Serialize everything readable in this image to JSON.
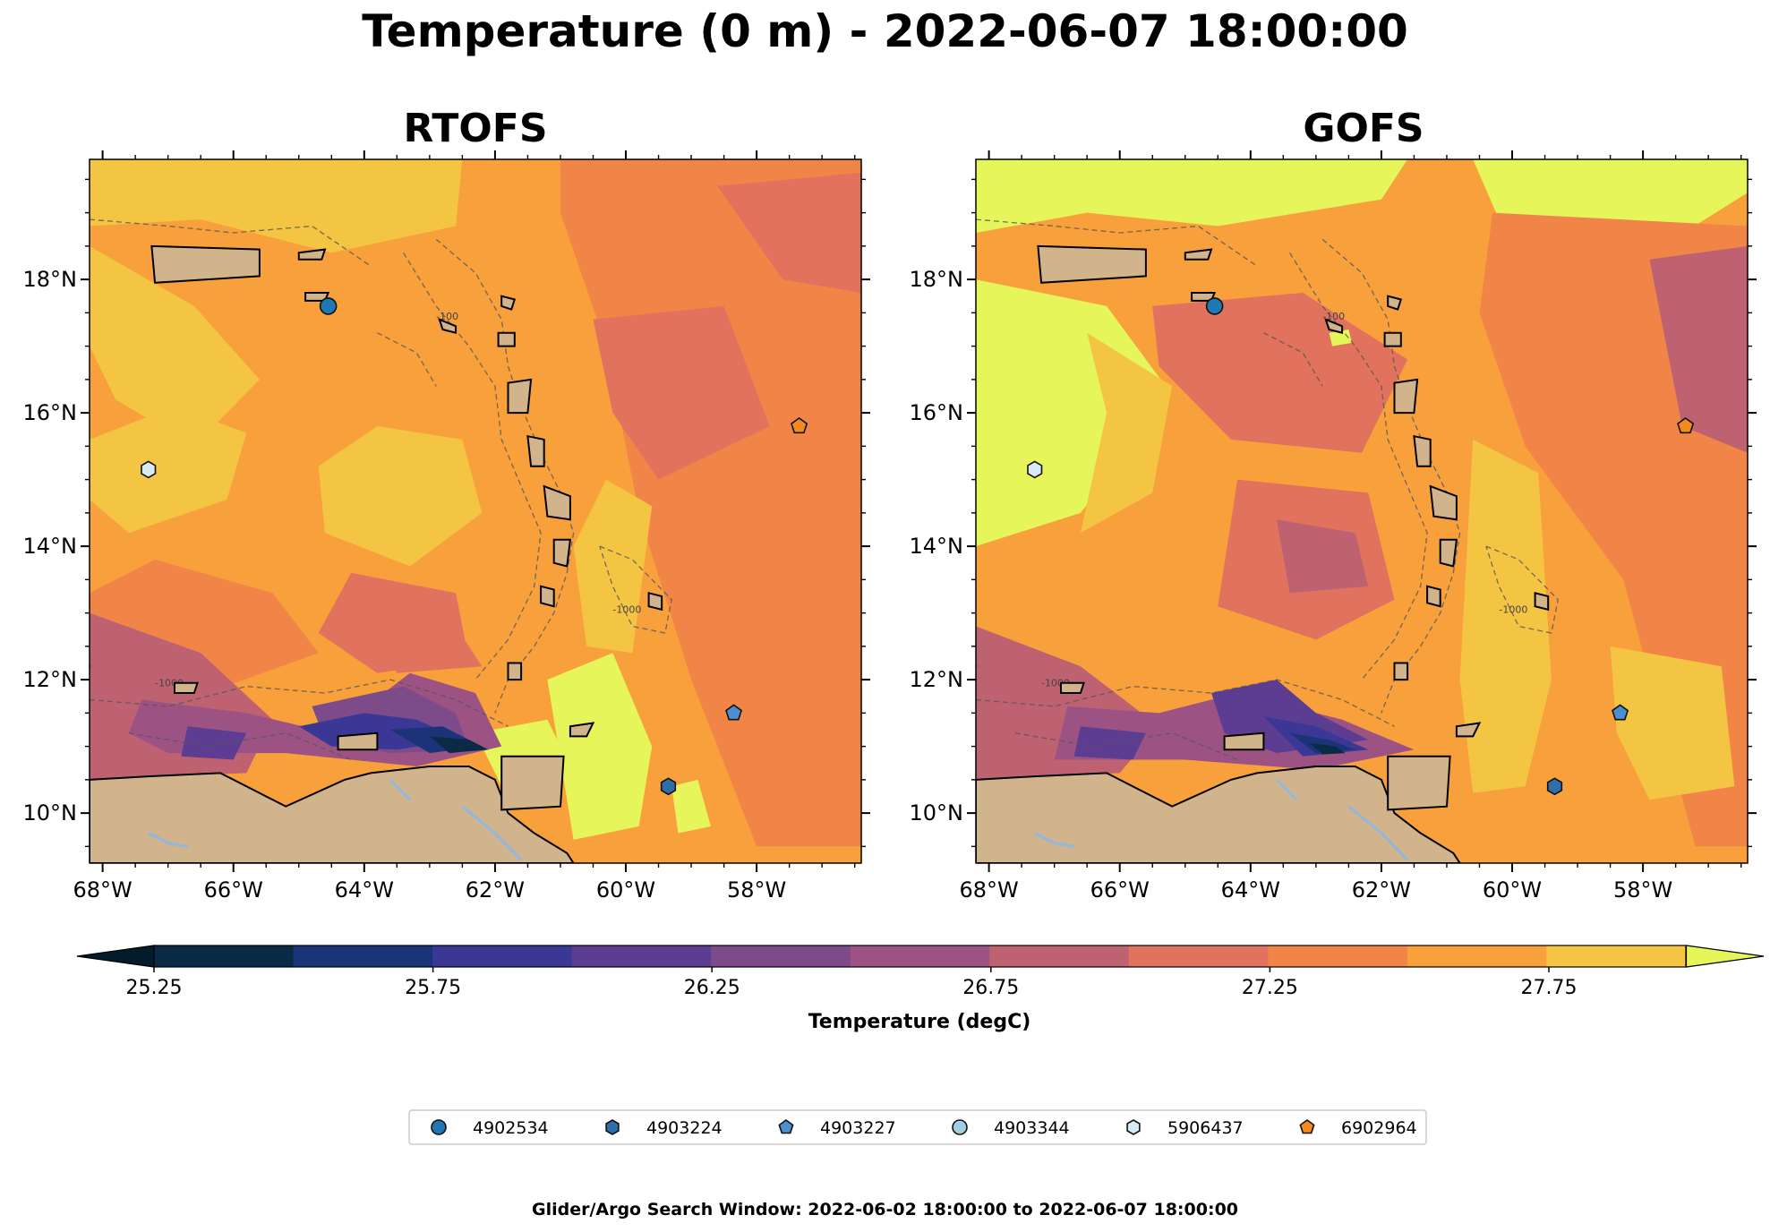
{
  "figure": {
    "title": "Temperature (0 m) - 2022-06-07 18:00:00",
    "footer": "Glider/Argo Search Window: 2022-06-02 18:00:00 to 2022-06-07 18:00:00"
  },
  "map": {
    "lon_range": [
      -68.2,
      -56.4
    ],
    "lat_range": [
      9.25,
      19.8
    ],
    "lon_ticks": [
      {
        "value": -68,
        "label": "68°W"
      },
      {
        "value": -66,
        "label": "66°W"
      },
      {
        "value": -64,
        "label": "64°W"
      },
      {
        "value": -62,
        "label": "62°W"
      },
      {
        "value": -60,
        "label": "60°W"
      },
      {
        "value": -58,
        "label": "58°W"
      }
    ],
    "lat_ticks": [
      {
        "value": 10,
        "label": "10°N"
      },
      {
        "value": 12,
        "label": "12°N"
      },
      {
        "value": 14,
        "label": "14°N"
      },
      {
        "value": 16,
        "label": "16°N"
      },
      {
        "value": 18,
        "label": "18°N"
      }
    ],
    "contour_labels": [
      "-1000",
      "-100"
    ],
    "land_color": "#d2b48c",
    "panels": [
      {
        "id": "rtofs",
        "title": "RTOFS"
      },
      {
        "id": "gofs",
        "title": "GOFS"
      }
    ]
  },
  "colorbar": {
    "label": "Temperature (degC)",
    "ticks": [
      "25.25",
      "25.75",
      "26.25",
      "26.75",
      "27.25",
      "27.75"
    ],
    "colors": [
      "#0b2a45",
      "#1b3477",
      "#3b3895",
      "#5c3d92",
      "#7e4b8a",
      "#9c5383",
      "#be6271",
      "#e0725e",
      "#f18548",
      "#f8a03b",
      "#f4c443"
    ],
    "extend_low": "#041c2c",
    "extend_high": "#e6f55a"
  },
  "floats": [
    {
      "id": "4902534",
      "marker": "circle",
      "color": "#1f77b4",
      "lon": -64.55,
      "lat": 17.6
    },
    {
      "id": "4903224",
      "marker": "hexagon",
      "color": "#2f6eaa",
      "lon": -59.35,
      "lat": 10.4
    },
    {
      "id": "4903227",
      "marker": "pentagon",
      "color": "#4c8fd0",
      "lon": -58.35,
      "lat": 11.5
    },
    {
      "id": "4903344",
      "marker": "circle",
      "color": "#a6cee3",
      "lon": null,
      "lat": null
    },
    {
      "id": "5906437",
      "marker": "hexagon",
      "color": "#d8eaf5",
      "lon": -67.3,
      "lat": 15.15
    },
    {
      "id": "6902964",
      "marker": "pentagon",
      "color": "#f58a1f",
      "lon": -57.35,
      "lat": 15.8
    }
  ]
}
